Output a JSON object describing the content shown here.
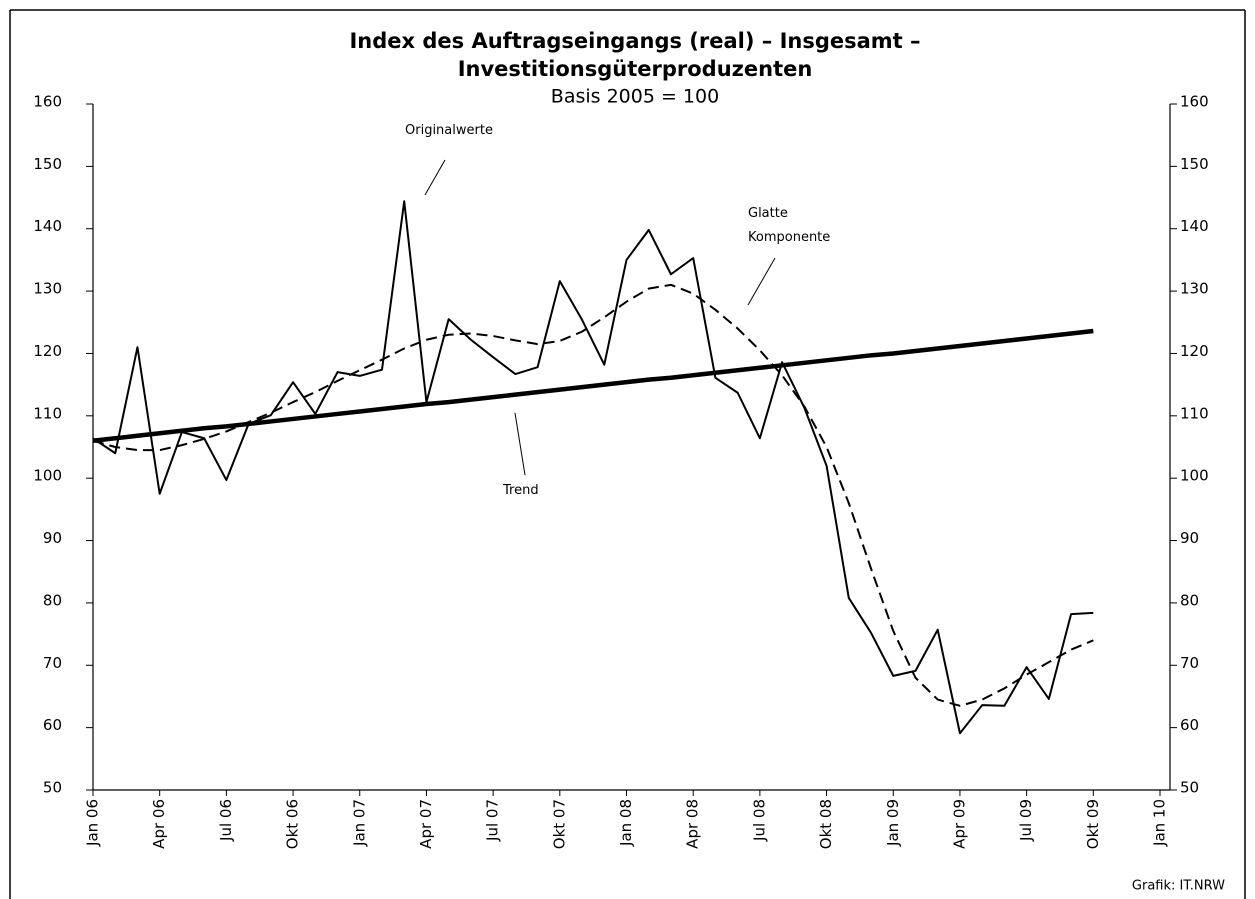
{
  "chart_data": {
    "type": "line",
    "title": [
      "Index des Auftragseingangs (real) – Insgesamt –",
      "Investitionsgüterproduzenten"
    ],
    "subtitle": "Basis 2005 = 100",
    "credit": "Grafik: IT.NRW",
    "categories": [
      "Jan 06",
      null,
      null,
      "Apr 06",
      null,
      null,
      "Jul 06",
      null,
      null,
      "Okt 06",
      null,
      null,
      "Jan 07",
      null,
      null,
      "Apr 07",
      null,
      null,
      "Jul 07",
      null,
      null,
      "Okt 07",
      null,
      null,
      "Jan 08",
      null,
      null,
      "Apr 08",
      null,
      null,
      "Jul 08",
      null,
      null,
      "Okt 08",
      null,
      null,
      "Jan 09",
      null,
      null,
      "Apr 09",
      null,
      null,
      "Jul 09",
      null,
      null,
      "Okt 09",
      null,
      null,
      "Jan 10"
    ],
    "series": [
      {
        "name": "Originalwerte",
        "color": "#000000",
        "line_style": "solid",
        "line_width": 2,
        "values": [
          106.4,
          104.0,
          121.0,
          97.5,
          107.4,
          106.4,
          99.7,
          108.7,
          110.1,
          115.4,
          110.3,
          117.0,
          116.4,
          117.4,
          144.4,
          112.2,
          125.5,
          122.2,
          119.4,
          116.7,
          117.8,
          131.6,
          125.4,
          118.2,
          135.0,
          139.8,
          132.7,
          135.3,
          116.1,
          113.7,
          106.4,
          118.6,
          111.3,
          102.0,
          80.8,
          75.2,
          68.3,
          69.1,
          75.7,
          59.1,
          63.6,
          63.5,
          69.7,
          64.6,
          78.2,
          78.4,
          null,
          null,
          null
        ]
      },
      {
        "name": "Glatte Komponente",
        "color": "#000000",
        "line_style": "dashed",
        "line_width": 2,
        "values": [
          106.0,
          105.0,
          104.5,
          104.5,
          105.3,
          106.3,
          107.5,
          109.0,
          110.5,
          112.2,
          113.8,
          115.6,
          117.3,
          119.0,
          120.8,
          122.2,
          123.0,
          123.2,
          122.8,
          122.1,
          121.5,
          122.0,
          123.5,
          125.8,
          128.3,
          130.4,
          131.0,
          129.6,
          127.0,
          124.0,
          120.5,
          116.5,
          111.5,
          105.0,
          96.0,
          85.5,
          75.5,
          68.0,
          64.5,
          63.5,
          64.5,
          66.3,
          68.5,
          70.5,
          72.5,
          74.0,
          null,
          null,
          null
        ]
      },
      {
        "name": "Trend",
        "color": "#000000",
        "line_style": "solid",
        "line_width": 4.5,
        "values": [
          106.0,
          106.4,
          106.8,
          107.2,
          107.6,
          108.0,
          108.3,
          108.7,
          109.1,
          109.5,
          109.9,
          110.3,
          110.7,
          111.1,
          111.5,
          111.9,
          112.2,
          112.6,
          113.0,
          113.4,
          113.8,
          114.2,
          114.6,
          115.0,
          115.4,
          115.8,
          116.1,
          116.5,
          116.9,
          117.3,
          117.7,
          118.1,
          118.5,
          118.9,
          119.3,
          119.7,
          120.0,
          120.4,
          120.8,
          121.2,
          121.6,
          122.0,
          122.4,
          122.8,
          123.2,
          123.6,
          null,
          null,
          null
        ]
      }
    ],
    "ylim": [
      50,
      160
    ],
    "yticks": [
      50,
      60,
      70,
      80,
      90,
      100,
      110,
      120,
      130,
      140,
      150,
      160
    ],
    "y2lim": [
      50,
      160
    ],
    "y2ticks": [
      50,
      60,
      70,
      80,
      90,
      100,
      110,
      120,
      130,
      140,
      150,
      160
    ]
  }
}
